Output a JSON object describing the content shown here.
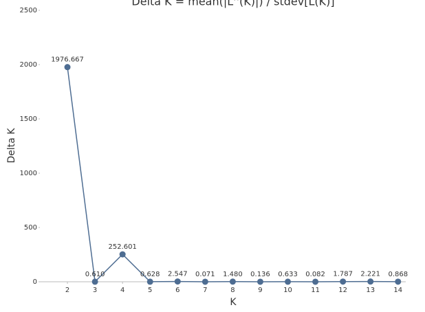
{
  "chart_data": {
    "type": "line",
    "title": "Delta K = mean(|L''(K)|) / stdev[L(K)]",
    "x_label": "K",
    "y_label": "Delta K",
    "x": [
      2,
      3,
      4,
      5,
      6,
      7,
      8,
      9,
      10,
      11,
      12,
      13,
      14
    ],
    "series": [
      {
        "name": "Delta K",
        "color": "#4e6d92",
        "values": [
          1976.667,
          0.61,
          252.601,
          0.628,
          2.547,
          0.071,
          1.48,
          0.136,
          0.633,
          0.082,
          1.787,
          2.221,
          0.868
        ],
        "value_labels": [
          "1976.667",
          "0.610",
          "252.601",
          "0.628",
          "2.547",
          "0.071",
          "1.480",
          "0.136",
          "0.633",
          "0.082",
          "1.787",
          "2.221",
          "0.868"
        ]
      }
    ],
    "xlim": [
      1,
      14.28
    ],
    "xticks": [
      2,
      3,
      4,
      5,
      6,
      7,
      8,
      9,
      10,
      11,
      12,
      13,
      14
    ],
    "ylim": [
      0,
      2500
    ],
    "yticks": [
      0,
      500,
      1000,
      1500,
      2000,
      2500
    ]
  }
}
